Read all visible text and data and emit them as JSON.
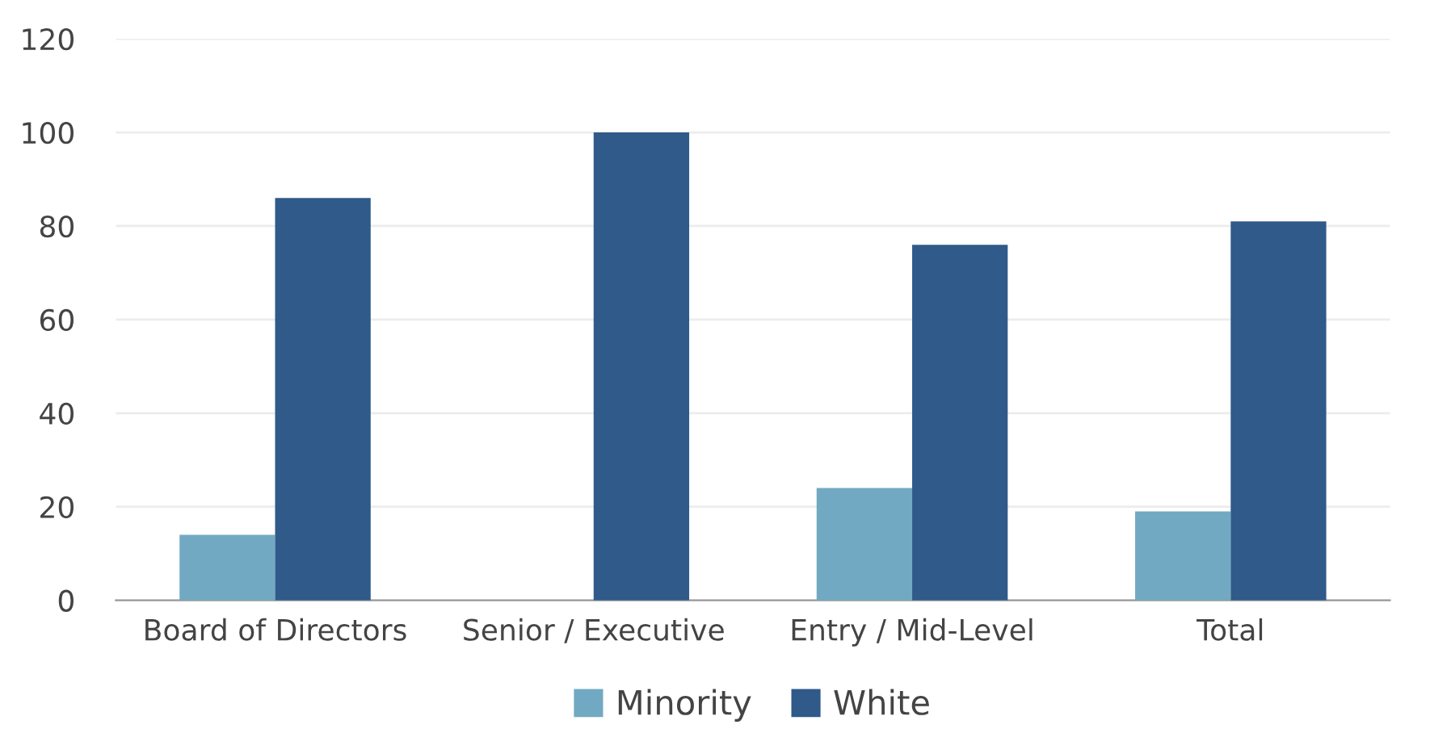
{
  "chart_data": {
    "type": "bar",
    "categories": [
      "Board of Directors",
      "Senior / Executive",
      "Entry / Mid-Level",
      "Total"
    ],
    "series": [
      {
        "name": "Minority",
        "color": "#72a9c2",
        "values": [
          14,
          0,
          24,
          19
        ]
      },
      {
        "name": "White",
        "color": "#2f5a8a",
        "values": [
          86,
          100,
          76,
          81
        ]
      }
    ],
    "ylim": [
      0,
      120
    ],
    "yticks": [
      0,
      20,
      40,
      60,
      80,
      100,
      120
    ],
    "grid": "y",
    "legend": "bottom"
  }
}
